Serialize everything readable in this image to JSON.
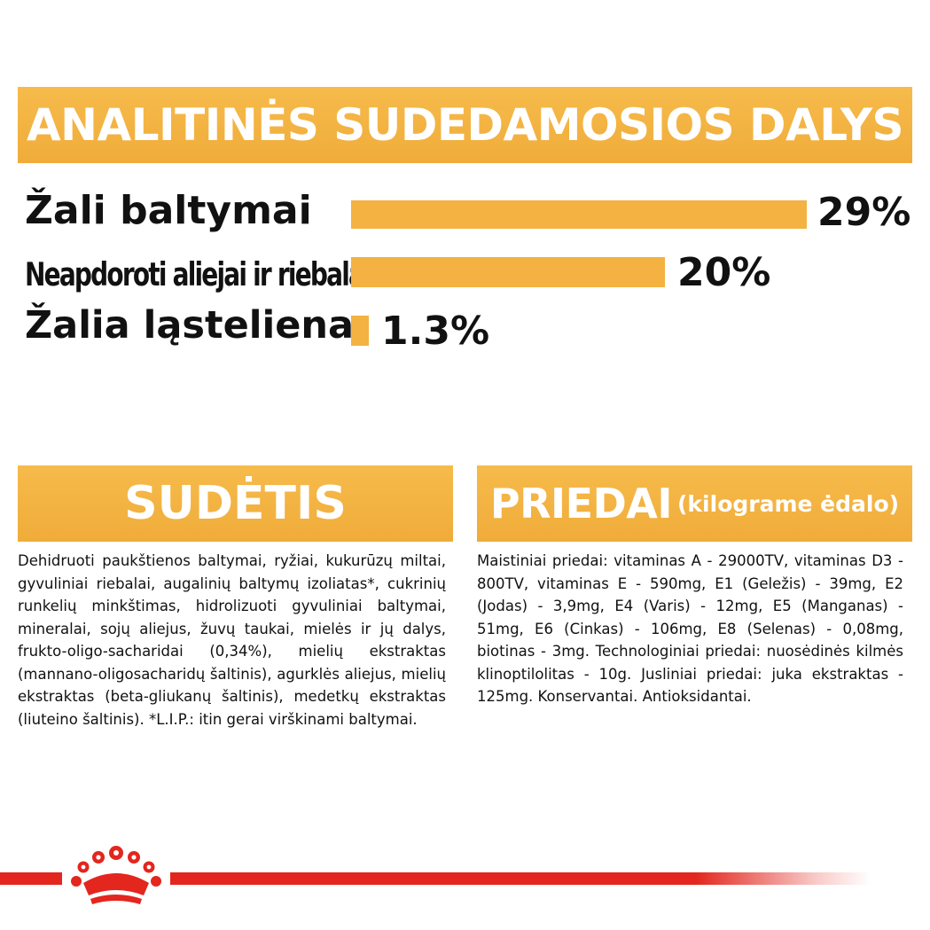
{
  "header": {
    "title": "ANALITINĖS SUDEDAMOSIOS DALYS"
  },
  "analysis": [
    {
      "label": "Žali baltymai",
      "value": 29,
      "display": "29%"
    },
    {
      "label": "Neapdoroti aliejai ir riebalai",
      "value": 20,
      "display": "20%"
    },
    {
      "label": "Žalia ląsteliena",
      "value": 1.3,
      "display": "1.3%"
    }
  ],
  "sudetis": {
    "title": "SUDĖTIS",
    "text": "Dehidruoti paukštienos baltymai, ryžiai, kukurūzų miltai, gyvuliniai riebalai, augalinių baltymų izoliatas*, cukrinių runkelių minkštimas, hidrolizuoti gyvuliniai baltymai, mineralai, sojų aliejus, žuvų taukai, mielės ir jų dalys, frukto-oligo-sacharidai (0,34%), mielių ekstraktas (mannano-oligosacharidų šaltinis), agurklės aliejus, mielių ekstraktas (beta-gliukanų šaltinis), medetkų ekstraktas (liuteino šaltinis). *L.I.P.: itin gerai virškinami baltymai."
  },
  "priedai": {
    "title": "PRIEDAI",
    "subtitle": "(kilograme ėdalo)",
    "text": "Maistiniai priedai: vitaminas A - 29000TV, vitaminas D3 - 800TV, vitaminas E - 590mg, E1 (Geležis) - 39mg, E2 (Jodas) - 3,9mg, E4 (Varis) - 12mg, E5 (Manganas) - 51mg, E6 (Cinkas) - 106mg, E8 (Selenas) - 0,08mg, biotinas - 3mg. Technologiniai priedai: nuosėdinės kilmės klinoptilolitas - 10g. Jusliniai priedai: juka ekstraktas - 125mg. Konservantai. Antioksidantai."
  },
  "colors": {
    "accent": "#f3b241",
    "brand_red": "#e3261e"
  },
  "logo": {
    "icon": "royal-canin-crown-icon"
  }
}
